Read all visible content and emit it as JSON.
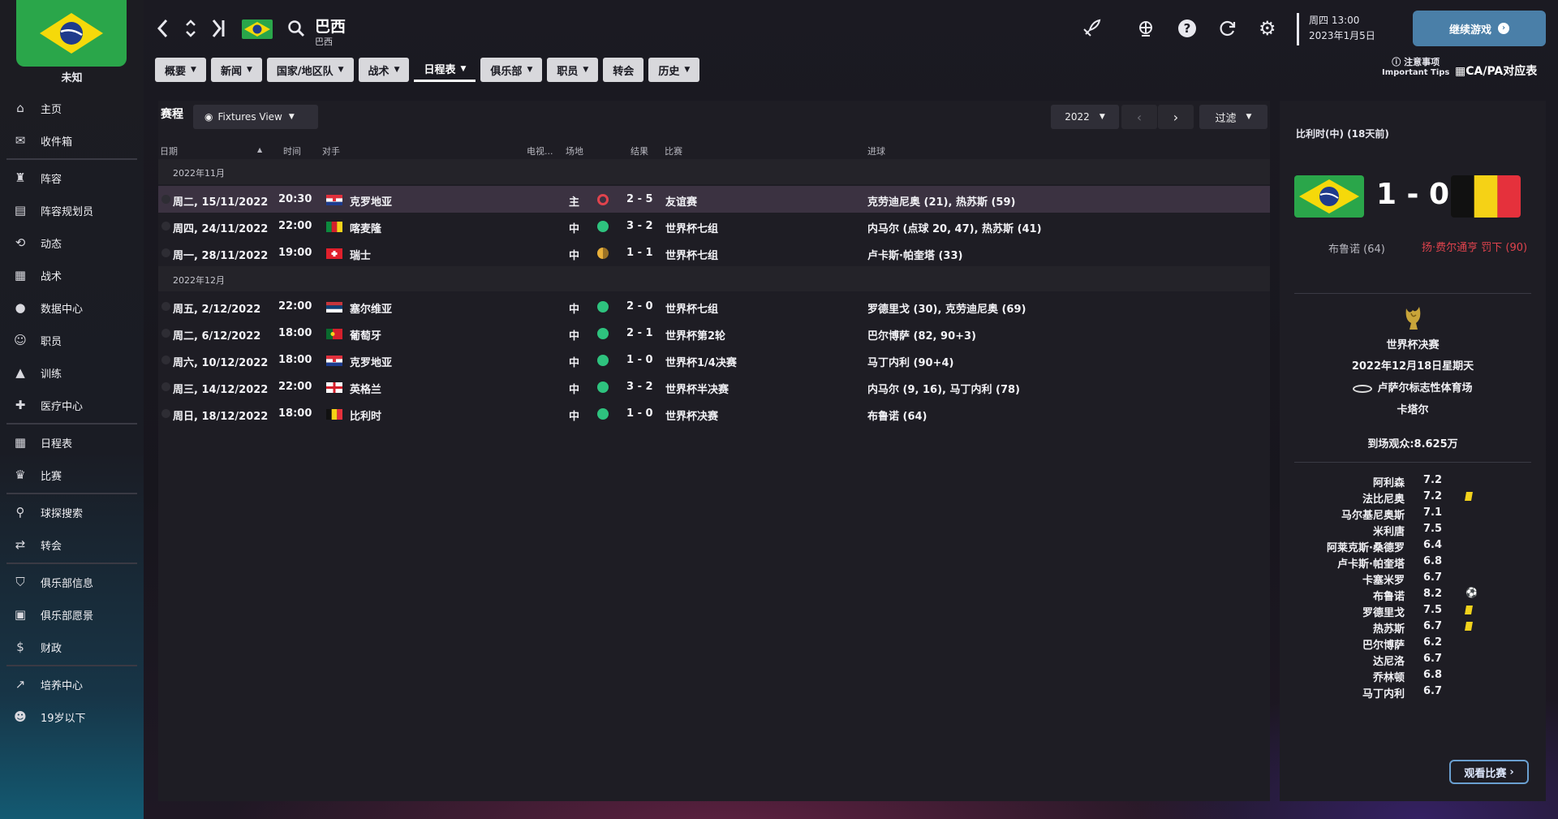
{
  "club": {
    "name": "未知"
  },
  "sidebar": {
    "groups": [
      [
        {
          "label": "主页",
          "icon": "home-icon"
        },
        {
          "label": "收件箱",
          "icon": "inbox-icon"
        }
      ],
      [
        {
          "label": "阵容",
          "icon": "squad-icon"
        },
        {
          "label": "阵容规划员",
          "icon": "clipboard-icon"
        },
        {
          "label": "动态",
          "icon": "dynamics-icon"
        },
        {
          "label": "战术",
          "icon": "tactics-icon"
        },
        {
          "label": "数据中心",
          "icon": "data-hub-icon"
        },
        {
          "label": "职员",
          "icon": "staff-icon"
        },
        {
          "label": "训练",
          "icon": "training-icon"
        },
        {
          "label": "医疗中心",
          "icon": "medical-icon"
        }
      ],
      [
        {
          "label": "日程表",
          "icon": "calendar-icon"
        },
        {
          "label": "比赛",
          "icon": "trophy-icon"
        }
      ],
      [
        {
          "label": "球探搜索",
          "icon": "search-icon"
        },
        {
          "label": "转会",
          "icon": "transfer-icon"
        }
      ],
      [
        {
          "label": "俱乐部信息",
          "icon": "shield-icon"
        },
        {
          "label": "俱乐部愿景",
          "icon": "briefcase-icon"
        },
        {
          "label": "财政",
          "icon": "finance-icon"
        }
      ],
      [
        {
          "label": "培养中心",
          "icon": "development-icon"
        },
        {
          "label": "19岁以下",
          "icon": "youth-icon"
        }
      ]
    ]
  },
  "header": {
    "team_title": "巴西",
    "team_subtitle": "巴西",
    "date_line1": "周四 13:00",
    "date_line2": "2023年1月5日",
    "continue_label": "继续游戏",
    "tips_line1": "注意事项",
    "tips_line2": "Important Tips",
    "capa_label": "CA/PA对应表"
  },
  "tabs": [
    {
      "label": "概要",
      "chevron": true
    },
    {
      "label": "新闻",
      "chevron": true
    },
    {
      "label": "国家/地区队",
      "chevron": true
    },
    {
      "label": "战术",
      "chevron": true
    },
    {
      "label": "日程表",
      "chevron": true,
      "active": true
    },
    {
      "label": "俱乐部",
      "chevron": true
    },
    {
      "label": "职员",
      "chevron": true
    },
    {
      "label": "转会",
      "chevron": false
    },
    {
      "label": "历史",
      "chevron": true
    }
  ],
  "fixtures": {
    "section_title": "赛程",
    "view_label": "Fixtures View",
    "year": "2022",
    "filter_label": "过滤",
    "columns": {
      "date": "日期",
      "time": "时间",
      "opponent": "对手",
      "tv": "电视...",
      "venue": "场地",
      "result": "结果",
      "competition": "比赛",
      "goals": "进球"
    },
    "groups": [
      {
        "label": "2022年11月",
        "matches": [
          {
            "date": "周二, 15/11/2022",
            "time": "20:30",
            "opponent": "克罗地亚",
            "flag": "croatia",
            "venue": "主",
            "outcome": "loss",
            "result": "2 - 5",
            "competition": "友谊赛",
            "goals": "克劳迪尼奥 (21), 热苏斯 (59)",
            "highlight": true
          },
          {
            "date": "周四, 24/11/2022",
            "time": "22:00",
            "opponent": "喀麦隆",
            "flag": "cameroon",
            "venue": "中",
            "outcome": "win",
            "result": "3 - 2",
            "competition": "世界杯七组",
            "goals": "内马尔 (点球 20, 47), 热苏斯 (41)"
          },
          {
            "date": "周一, 28/11/2022",
            "time": "19:00",
            "opponent": "瑞士",
            "flag": "switzerland",
            "venue": "中",
            "outcome": "draw",
            "result": "1 - 1",
            "competition": "世界杯七组",
            "goals": "卢卡斯·帕奎塔 (33)"
          }
        ]
      },
      {
        "label": "2022年12月",
        "matches": [
          {
            "date": "周五, 2/12/2022",
            "time": "22:00",
            "opponent": "塞尔维亚",
            "flag": "serbia",
            "venue": "中",
            "outcome": "win",
            "result": "2 - 0",
            "competition": "世界杯七组",
            "goals": "罗德里戈 (30), 克劳迪尼奥 (69)"
          },
          {
            "date": "周二, 6/12/2022",
            "time": "18:00",
            "opponent": "葡萄牙",
            "flag": "portugal",
            "venue": "中",
            "outcome": "win",
            "result": "2 - 1",
            "competition": "世界杯第2轮",
            "goals": "巴尔博萨 (82, 90+3)"
          },
          {
            "date": "周六, 10/12/2022",
            "time": "18:00",
            "opponent": "克罗地亚",
            "flag": "croatia",
            "venue": "中",
            "outcome": "win",
            "result": "1 - 0",
            "competition": "世界杯1/4决赛",
            "goals": "马丁内利 (90+4)"
          },
          {
            "date": "周三, 14/12/2022",
            "time": "22:00",
            "opponent": "英格兰",
            "flag": "england",
            "venue": "中",
            "outcome": "win",
            "result": "3 - 2",
            "competition": "世界杯半决赛",
            "goals": "内马尔 (9, 16), 马丁内利 (78)"
          },
          {
            "date": "周日, 18/12/2022",
            "time": "18:00",
            "opponent": "比利时",
            "flag": "belgium",
            "venue": "中",
            "outcome": "win",
            "result": "1 - 0",
            "competition": "世界杯决赛",
            "goals": "布鲁诺 (64)"
          }
        ]
      }
    ]
  },
  "match_detail": {
    "title": "比利时(中) (18天前)",
    "score": "1 - 0",
    "home_scorers": "布鲁诺 (64)",
    "away_scorers": "扬·费尔通亨 罚下 (90)",
    "competition": "世界杯决赛",
    "date": "2022年12月18日星期天",
    "venue": "卢萨尔标志性体育场",
    "city": "卡塔尔",
    "attendance": "到场观众:8.625万",
    "players": [
      {
        "name": "阿利森",
        "rating": "7.2",
        "icon": ""
      },
      {
        "name": "法比尼奥",
        "rating": "7.2",
        "icon": "yellow-card"
      },
      {
        "name": "马尔基尼奥斯",
        "rating": "7.1",
        "icon": ""
      },
      {
        "name": "米利唐",
        "rating": "7.5",
        "icon": ""
      },
      {
        "name": "阿莱克斯·桑德罗",
        "rating": "6.4",
        "icon": ""
      },
      {
        "name": "卢卡斯·帕奎塔",
        "rating": "6.8",
        "icon": ""
      },
      {
        "name": "卡塞米罗",
        "rating": "6.7",
        "icon": ""
      },
      {
        "name": "布鲁诺",
        "rating": "8.2",
        "icon": "goal"
      },
      {
        "name": "罗德里戈",
        "rating": "7.5",
        "icon": "yellow-card"
      },
      {
        "name": "热苏斯",
        "rating": "6.7",
        "icon": "yellow-card"
      },
      {
        "name": "巴尔博萨",
        "rating": "6.2",
        "icon": ""
      },
      {
        "name": "达尼洛",
        "rating": "6.7",
        "icon": ""
      },
      {
        "name": "乔林顿",
        "rating": "6.8",
        "icon": ""
      },
      {
        "name": "马丁内利",
        "rating": "6.7",
        "icon": ""
      }
    ],
    "watch_label": "观看比赛"
  }
}
